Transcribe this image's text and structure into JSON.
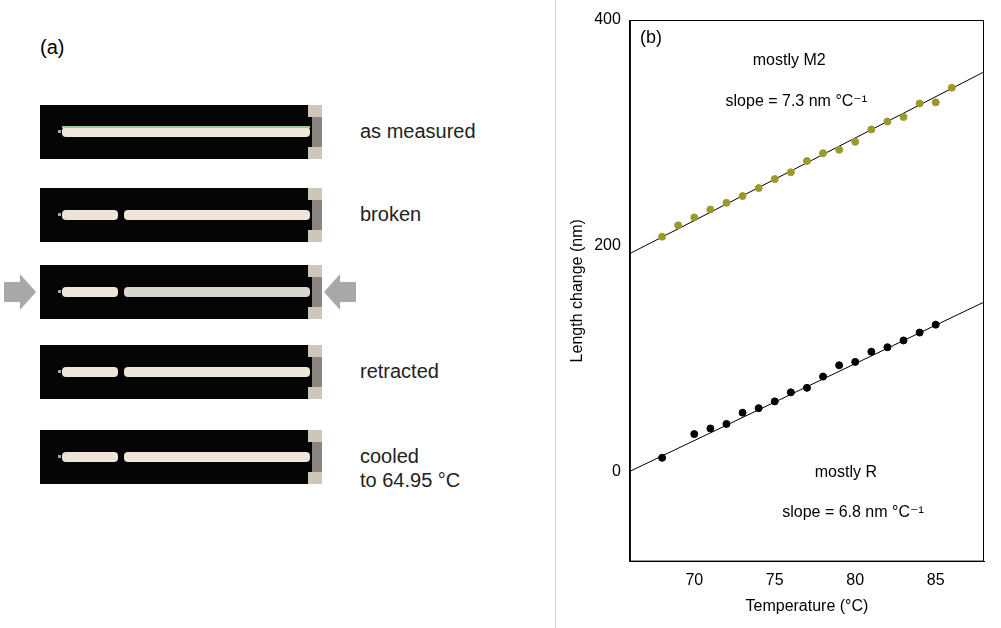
{
  "panel_a": {
    "letter": "(a)",
    "frames": [
      {
        "label": "as measured",
        "broken": false
      },
      {
        "label": "broken",
        "broken": true
      },
      {
        "label": null,
        "broken": true,
        "arrows": true
      },
      {
        "label": "retracted",
        "broken": true
      },
      {
        "label": "cooled\nto 64.95 °C",
        "broken": true
      }
    ]
  },
  "chart_data": {
    "type": "scatter",
    "panel": "(b)",
    "xlabel": "Temperature (°C)",
    "ylabel": "Length change (nm)",
    "xlim": [
      66,
      88
    ],
    "xticks": [
      70,
      75,
      80,
      85
    ],
    "ylim": [
      -80,
      400
    ],
    "yticks": [
      0,
      200,
      400
    ],
    "grid": false,
    "series": [
      {
        "name": "mostly M2",
        "color": "#9a9a2a",
        "marker": "circle",
        "x": [
          68,
          69,
          70,
          71,
          72,
          73,
          74,
          75,
          76,
          77,
          78,
          79,
          80,
          81,
          82,
          83,
          84,
          85,
          86
        ],
        "values": [
          208,
          218,
          225,
          232,
          238,
          244,
          251,
          259,
          265,
          275,
          282,
          285,
          292,
          303,
          310,
          314,
          326,
          327,
          340
        ],
        "fit": {
          "x": [
            66,
            88
          ],
          "values": [
            193,
            354
          ]
        },
        "annotation": "slope = 7.3 nm °C⁻¹"
      },
      {
        "name": "mostly R",
        "color": "#000000",
        "marker": "circle",
        "x": [
          68,
          70,
          71,
          72,
          73,
          74,
          75,
          76,
          77,
          78,
          79,
          80,
          81,
          82,
          83,
          84,
          85
        ],
        "values": [
          12,
          33,
          38,
          42,
          52,
          56,
          62,
          70,
          74,
          84,
          94,
          97,
          106,
          110,
          116,
          123,
          130
        ],
        "fit": {
          "x": [
            66,
            88
          ],
          "values": [
            0,
            150
          ]
        },
        "annotation": "slope = 6.8 nm °C⁻¹"
      }
    ]
  }
}
